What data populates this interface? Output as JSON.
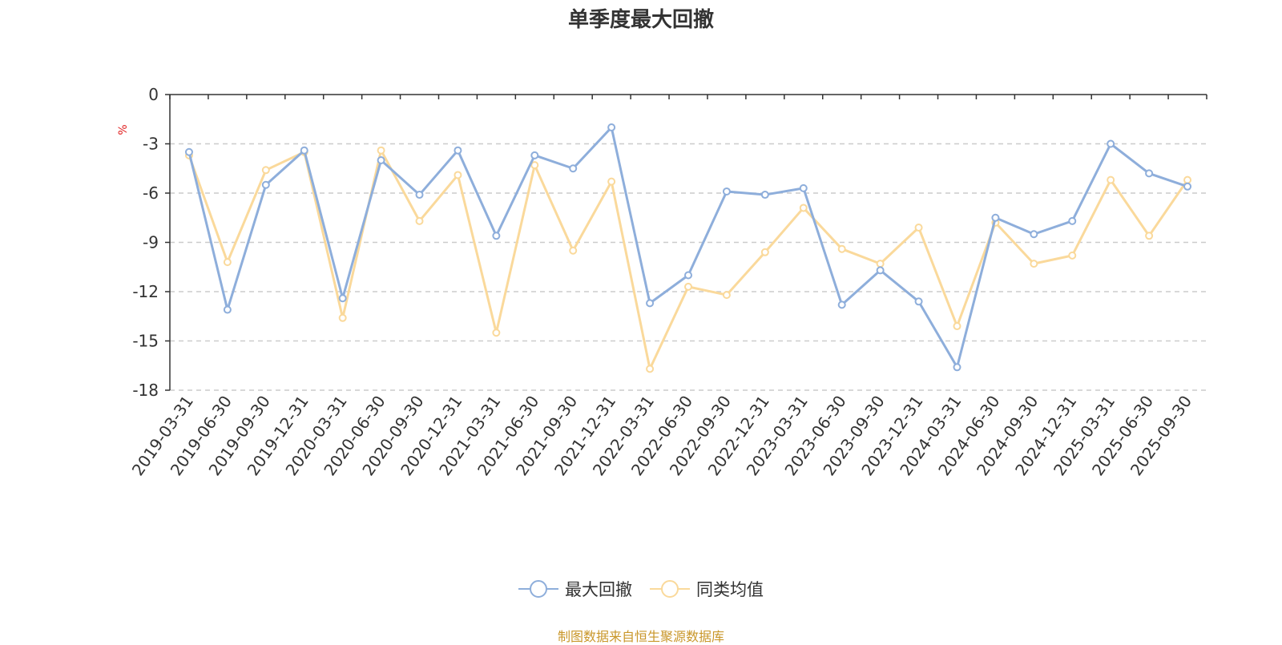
{
  "source_note": "制图数据来自恒生聚源数据库",
  "chart_data": {
    "type": "line",
    "title": "单季度最大回撤",
    "ylabel": "%",
    "ylim": [
      -18,
      0
    ],
    "yticks": [
      0,
      -3,
      -6,
      -9,
      -12,
      -15,
      -18
    ],
    "grid": true,
    "legend_position": "bottom",
    "categories": [
      "2019-03-31",
      "2019-06-30",
      "2019-09-30",
      "2019-12-31",
      "2020-03-31",
      "2020-06-30",
      "2020-09-30",
      "2020-12-31",
      "2021-03-31",
      "2021-06-30",
      "2021-09-30",
      "2021-12-31",
      "2022-03-31",
      "2022-06-30",
      "2022-09-30",
      "2022-12-31",
      "2023-03-31",
      "2023-06-30",
      "2023-09-30",
      "2023-12-31",
      "2024-03-31",
      "2024-06-30",
      "2024-09-30",
      "2024-12-31",
      "2025-03-31",
      "2025-06-30",
      "2025-09-30"
    ],
    "series": [
      {
        "name": "最大回撤",
        "color": "#8eaedb",
        "values": [
          -3.5,
          -13.1,
          -5.5,
          -3.4,
          -12.4,
          -4.0,
          -6.1,
          -3.4,
          -8.6,
          -3.7,
          -4.5,
          -2.0,
          -12.7,
          -11.0,
          -5.9,
          -6.1,
          -5.7,
          -12.8,
          -10.7,
          -12.6,
          -16.6,
          -7.5,
          -8.5,
          -7.7,
          -3.0,
          -4.8,
          -5.6
        ]
      },
      {
        "name": "同类均值",
        "color": "#fad99b",
        "values": [
          -3.7,
          -10.2,
          -4.6,
          -3.5,
          -13.6,
          -3.4,
          -7.7,
          -4.9,
          -14.5,
          -4.3,
          -9.5,
          -5.3,
          -16.7,
          -11.7,
          -12.2,
          -9.6,
          -6.9,
          -9.4,
          -10.3,
          -8.1,
          -14.1,
          -7.8,
          -10.3,
          -9.8,
          -5.2,
          -8.6,
          -5.2
        ]
      }
    ]
  }
}
